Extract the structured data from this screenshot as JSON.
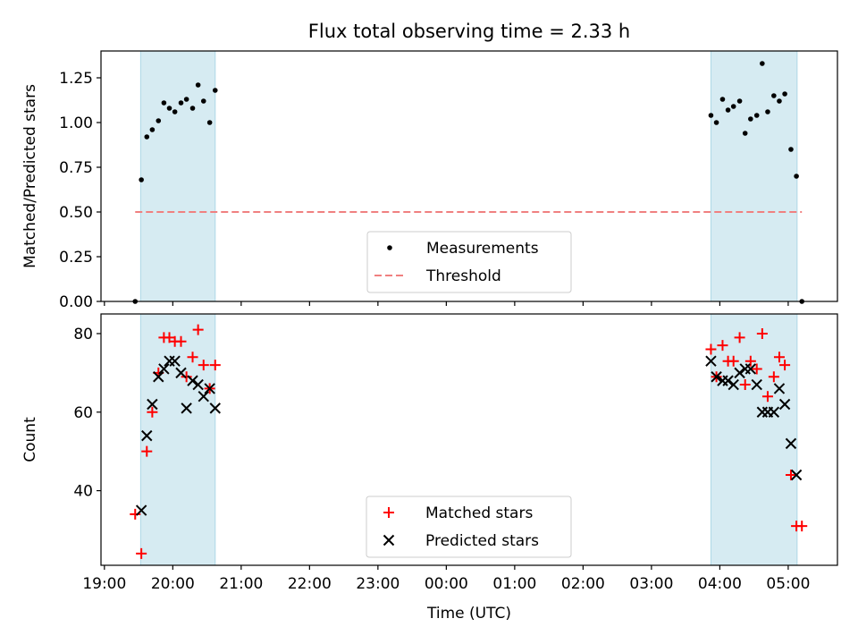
{
  "chart_data": {
    "title": "Flux total observing time = 2.33 h",
    "xlabel": "Time (UTC)",
    "x_unit": "hours since 19:00 UTC (time axis, crosses midnight)",
    "xlim": [
      -0.05,
      10.72
    ],
    "xticks": [
      {
        "v": 0,
        "label": "19:00"
      },
      {
        "v": 1,
        "label": "20:00"
      },
      {
        "v": 2,
        "label": "21:00"
      },
      {
        "v": 3,
        "label": "22:00"
      },
      {
        "v": 4,
        "label": "23:00"
      },
      {
        "v": 5,
        "label": "00:00"
      },
      {
        "v": 6,
        "label": "01:00"
      },
      {
        "v": 7,
        "label": "02:00"
      },
      {
        "v": 8,
        "label": "03:00"
      },
      {
        "v": 9,
        "label": "04:00"
      },
      {
        "v": 10,
        "label": "05:00"
      }
    ],
    "observing_windows": [
      [
        0.53,
        1.62
      ],
      [
        8.87,
        10.13
      ]
    ],
    "window_color": "#add8e6",
    "panels": [
      {
        "type": "scatter",
        "ylabel": "Matched/Predicted stars",
        "ylim": [
          0,
          1.4
        ],
        "yticks": [
          {
            "v": 0,
            "label": "0.00"
          },
          {
            "v": 0.25,
            "label": "0.25"
          },
          {
            "v": 0.5,
            "label": "0.50"
          },
          {
            "v": 0.75,
            "label": "0.75"
          },
          {
            "v": 1,
            "label": "1.00"
          },
          {
            "v": 1.25,
            "label": "1.25"
          }
        ],
        "legend": [
          {
            "label": "Measurements",
            "marker": "dot",
            "color": "#000000"
          },
          {
            "label": "Threshold",
            "marker": "dashed-line",
            "color": "#f08080"
          }
        ],
        "threshold": {
          "value": 0.5,
          "x_start": 0.45,
          "x_end": 10.2,
          "color": "#f08080"
        },
        "series": [
          {
            "name": "Measurements",
            "color": "#000000",
            "points": [
              [
                0.45,
                0.0
              ],
              [
                0.54,
                0.68
              ],
              [
                0.62,
                0.92
              ],
              [
                0.7,
                0.96
              ],
              [
                0.79,
                1.01
              ],
              [
                0.87,
                1.11
              ],
              [
                0.95,
                1.08
              ],
              [
                1.03,
                1.06
              ],
              [
                1.12,
                1.11
              ],
              [
                1.2,
                1.13
              ],
              [
                1.29,
                1.08
              ],
              [
                1.37,
                1.21
              ],
              [
                1.45,
                1.12
              ],
              [
                1.54,
                1.0
              ],
              [
                1.62,
                1.18
              ],
              [
                8.87,
                1.04
              ],
              [
                8.95,
                1.0
              ],
              [
                9.04,
                1.13
              ],
              [
                9.12,
                1.07
              ],
              [
                9.2,
                1.09
              ],
              [
                9.29,
                1.12
              ],
              [
                9.37,
                0.94
              ],
              [
                9.45,
                1.02
              ],
              [
                9.54,
                1.04
              ],
              [
                9.62,
                1.33
              ],
              [
                9.7,
                1.06
              ],
              [
                9.79,
                1.15
              ],
              [
                9.87,
                1.12
              ],
              [
                9.95,
                1.16
              ],
              [
                10.04,
                0.85
              ],
              [
                10.12,
                0.7
              ],
              [
                10.2,
                0.0
              ]
            ]
          }
        ]
      },
      {
        "type": "scatter",
        "ylabel": "Count",
        "ylim": [
          21,
          85
        ],
        "yticks": [
          {
            "v": 40,
            "label": "40"
          },
          {
            "v": 60,
            "label": "60"
          },
          {
            "v": 80,
            "label": "80"
          }
        ],
        "legend": [
          {
            "label": "Matched stars",
            "marker": "plus",
            "color": "#ff0000"
          },
          {
            "label": "Predicted stars",
            "marker": "x",
            "color": "#000000"
          }
        ],
        "series": [
          {
            "name": "Matched stars",
            "marker": "plus",
            "color": "#ff0000",
            "points": [
              [
                0.45,
                34
              ],
              [
                0.54,
                24
              ],
              [
                0.62,
                50
              ],
              [
                0.7,
                60
              ],
              [
                0.79,
                70
              ],
              [
                0.87,
                79
              ],
              [
                0.95,
                79
              ],
              [
                1.03,
                78
              ],
              [
                1.12,
                78
              ],
              [
                1.2,
                69
              ],
              [
                1.29,
                74
              ],
              [
                1.37,
                81
              ],
              [
                1.45,
                72
              ],
              [
                1.54,
                66
              ],
              [
                1.62,
                72
              ],
              [
                8.87,
                76
              ],
              [
                8.95,
                69
              ],
              [
                9.04,
                77
              ],
              [
                9.12,
                73
              ],
              [
                9.2,
                73
              ],
              [
                9.29,
                79
              ],
              [
                9.37,
                67
              ],
              [
                9.45,
                73
              ],
              [
                9.54,
                71
              ],
              [
                9.62,
                80
              ],
              [
                9.7,
                64
              ],
              [
                9.79,
                69
              ],
              [
                9.87,
                74
              ],
              [
                9.95,
                72
              ],
              [
                10.04,
                44
              ],
              [
                10.12,
                31
              ],
              [
                10.2,
                31
              ]
            ]
          },
          {
            "name": "Predicted stars",
            "marker": "x",
            "color": "#000000",
            "points": [
              [
                0.54,
                35
              ],
              [
                0.62,
                54
              ],
              [
                0.7,
                62
              ],
              [
                0.79,
                69
              ],
              [
                0.87,
                71
              ],
              [
                0.95,
                73
              ],
              [
                1.03,
                73
              ],
              [
                1.12,
                70
              ],
              [
                1.2,
                61
              ],
              [
                1.29,
                68
              ],
              [
                1.37,
                67
              ],
              [
                1.45,
                64
              ],
              [
                1.54,
                66
              ],
              [
                1.62,
                61
              ],
              [
                8.87,
                73
              ],
              [
                8.95,
                69
              ],
              [
                9.04,
                68
              ],
              [
                9.12,
                68
              ],
              [
                9.2,
                67
              ],
              [
                9.29,
                70
              ],
              [
                9.37,
                71
              ],
              [
                9.45,
                71
              ],
              [
                9.54,
                67
              ],
              [
                9.62,
                60
              ],
              [
                9.7,
                60
              ],
              [
                9.79,
                60
              ],
              [
                9.87,
                66
              ],
              [
                9.95,
                62
              ],
              [
                10.04,
                52
              ],
              [
                10.12,
                44
              ]
            ]
          }
        ]
      }
    ]
  }
}
